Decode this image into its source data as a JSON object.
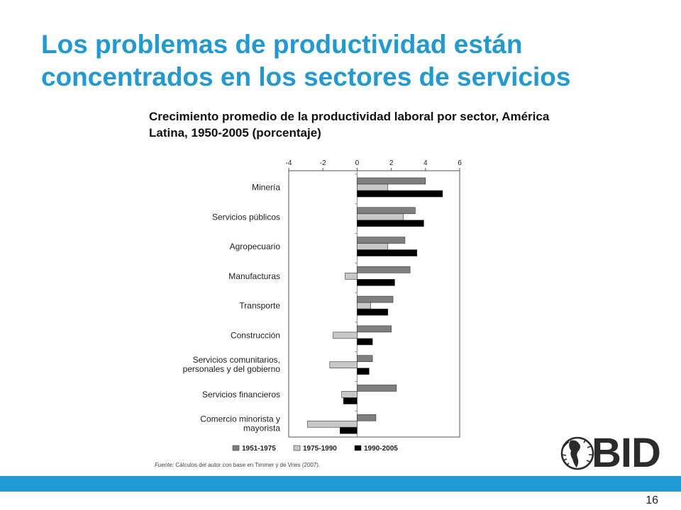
{
  "slide": {
    "title": "Los problemas de productividad están concentrados en los sectores de servicios",
    "subtitle": "Crecimiento promedio de la productividad laboral por sector, América Latina, 1950-2005 (porcentaje)",
    "source_label": "Fuente:",
    "source_text": "Cálculos del autor con base en Timmer y de Vries (2007).",
    "page_number": "16",
    "logo_text": "BID",
    "colors": {
      "title": "#1e9ad6",
      "footer_bar": "#1e9ad6"
    }
  },
  "chart_data": {
    "type": "bar",
    "orientation": "horizontal",
    "categories": [
      "Minería",
      "Servicios públicos",
      "Agropecuario",
      "Manufacturas",
      "Transporte",
      "Construcción",
      "Servicios comunitarios, personales y del gobierno",
      "Servicios financieros",
      "Comercio minorista y mayorista"
    ],
    "series": [
      {
        "name": "1951-1975",
        "color": "#7f7f7f",
        "values": [
          4.0,
          3.4,
          2.8,
          3.1,
          2.1,
          2.0,
          0.9,
          2.3,
          1.1
        ]
      },
      {
        "name": "1975-1990",
        "color": "#c8c8c8",
        "values": [
          1.8,
          2.7,
          1.8,
          -0.7,
          0.8,
          -1.4,
          -1.6,
          -0.9,
          -2.9
        ]
      },
      {
        "name": "1990-2005",
        "color": "#000000",
        "values": [
          5.0,
          3.9,
          3.5,
          2.2,
          1.8,
          0.9,
          0.7,
          -0.8,
          -1.0
        ]
      }
    ],
    "xlim": [
      -4,
      6
    ],
    "xticks": [
      -4,
      -2,
      0,
      2,
      4,
      6
    ],
    "legend_position": "bottom",
    "grid": false
  }
}
